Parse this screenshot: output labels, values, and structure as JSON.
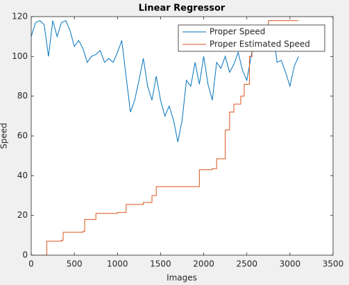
{
  "chart_data": {
    "type": "line",
    "title": "Linear Regressor",
    "x_label": "Images",
    "y_label": "Speed",
    "xlim": [
      0,
      3500
    ],
    "xticks": [
      0,
      500,
      1000,
      1500,
      2000,
      2500,
      3000,
      3500
    ],
    "ylim": [
      0,
      120
    ],
    "yticks": [
      0,
      20,
      40,
      60,
      80,
      100,
      120
    ],
    "legend": "top-right",
    "series": [
      {
        "name": "Proper Speed",
        "color": "#0072BD",
        "x": [
          0,
          50,
          100,
          150,
          200,
          250,
          300,
          350,
          400,
          450,
          500,
          550,
          600,
          650,
          700,
          750,
          800,
          850,
          900,
          950,
          1000,
          1050,
          1100,
          1150,
          1200,
          1250,
          1300,
          1350,
          1400,
          1450,
          1500,
          1550,
          1600,
          1650,
          1700,
          1750,
          1800,
          1850,
          1900,
          1950,
          2000,
          2050,
          2100,
          2150,
          2200,
          2250,
          2300,
          2350,
          2400,
          2450,
          2500,
          2550,
          2600,
          2650,
          2700,
          2750,
          2800,
          2850,
          2900,
          2950,
          3000,
          3050,
          3100
        ],
        "values": [
          110,
          117,
          118,
          116,
          100,
          118,
          110,
          117,
          118,
          113,
          105,
          108,
          104,
          97,
          100,
          101,
          103,
          97,
          99,
          97,
          102,
          108,
          90,
          72,
          78,
          88,
          99,
          85,
          78,
          90,
          78,
          70,
          75,
          68,
          57,
          68,
          88,
          85,
          97,
          86,
          100,
          86,
          78,
          97,
          94,
          100,
          92,
          96,
          102,
          93,
          88,
          100,
          112,
          112,
          105,
          103,
          115,
          97,
          98,
          92,
          85,
          95,
          100
        ]
      },
      {
        "name": "Proper Estimated Speed",
        "color": "#D95319",
        "x": [
          0,
          180,
          180,
          350,
          350,
          370,
          370,
          600,
          600,
          620,
          620,
          750,
          750,
          1000,
          1000,
          1100,
          1100,
          1300,
          1300,
          1400,
          1400,
          1450,
          1450,
          1950,
          1950,
          2100,
          2100,
          2150,
          2150,
          2250,
          2250,
          2300,
          2300,
          2350,
          2350,
          2430,
          2430,
          2470,
          2470,
          2530,
          2530,
          2560,
          2560,
          2650,
          2650,
          2750,
          2750,
          3100
        ],
        "values": [
          0,
          0,
          7,
          7,
          7.5,
          7.5,
          11.5,
          11.5,
          12,
          12,
          18,
          18,
          21,
          21,
          21.5,
          21.5,
          25.5,
          25.5,
          26.5,
          26.5,
          30,
          30,
          34.5,
          34.5,
          43,
          43,
          43.5,
          43.5,
          48.5,
          48.5,
          63,
          63,
          72,
          72,
          76,
          76,
          80,
          80,
          86,
          86,
          100,
          100,
          108,
          108,
          115,
          115,
          118,
          118
        ]
      }
    ]
  }
}
